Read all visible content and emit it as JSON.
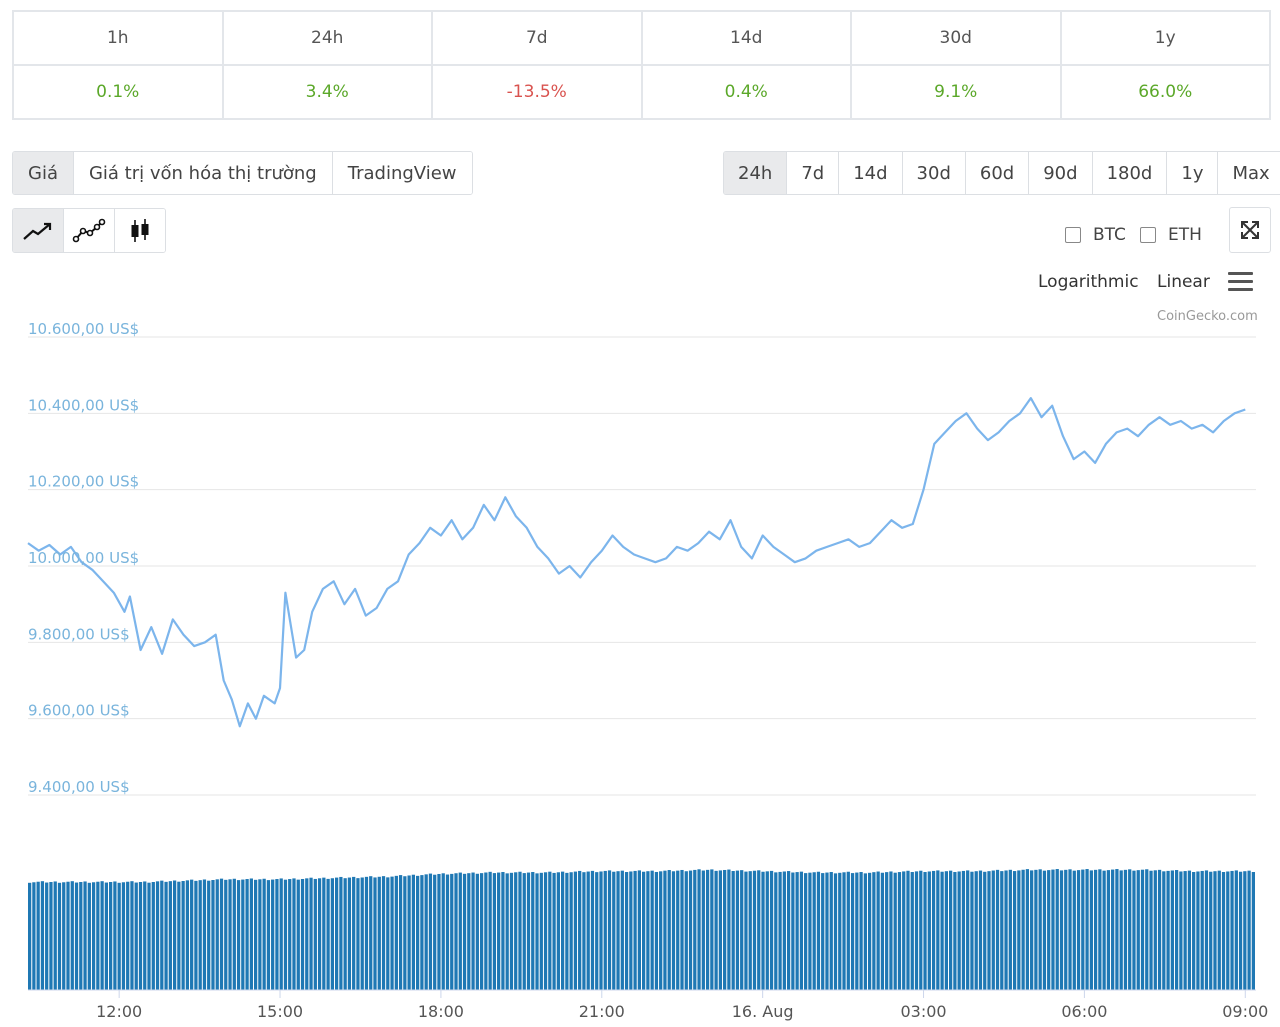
{
  "performance": {
    "periods": [
      "1h",
      "24h",
      "7d",
      "14d",
      "30d",
      "1y"
    ],
    "changes": [
      "0.1%",
      "3.4%",
      "-13.5%",
      "0.4%",
      "9.1%",
      "66.0%"
    ]
  },
  "tabs": [
    "Giá",
    "Giá trị vốn hóa thị trường",
    "TradingView"
  ],
  "ranges": [
    "24h",
    "7d",
    "14d",
    "30d",
    "60d",
    "90d",
    "180d",
    "1y",
    "Max"
  ],
  "chart_types": [
    "line-chart-icon",
    "line-markers-icon",
    "candlestick-icon"
  ],
  "compare": [
    "BTC",
    "ETH"
  ],
  "scale_options": [
    "Logarithmic",
    "Linear"
  ],
  "credit": "CoinGecko.com",
  "colors": {
    "line": "#7cb5ec",
    "volume": "#1f78b4",
    "positive": "#5ba829",
    "negative": "#d9534f"
  },
  "chart_data": {
    "type": "line",
    "title": "",
    "xlabel": "",
    "ylabel": "",
    "ylim": [
      9400,
      10600
    ],
    "y_ticks": [
      "10.600,00 US$",
      "10.400,00 US$",
      "10.200,00 US$",
      "10.000,00 US$",
      "9.800,00 US$",
      "9.600,00 US$",
      "9.400,00 US$"
    ],
    "x_ticks": [
      "12:00",
      "15:00",
      "18:00",
      "21:00",
      "16. Aug",
      "03:00",
      "06:00",
      "09:00"
    ],
    "x_range_hours": [
      10.3,
      33.2
    ],
    "series": [
      {
        "values": [
          [
            10.3,
            10060
          ],
          [
            10.5,
            10040
          ],
          [
            10.7,
            10055
          ],
          [
            10.9,
            10030
          ],
          [
            11.1,
            10050
          ],
          [
            11.3,
            10010
          ],
          [
            11.5,
            9990
          ],
          [
            11.7,
            9960
          ],
          [
            11.9,
            9930
          ],
          [
            12.1,
            9880
          ],
          [
            12.2,
            9920
          ],
          [
            12.4,
            9780
          ],
          [
            12.6,
            9840
          ],
          [
            12.8,
            9770
          ],
          [
            13.0,
            9860
          ],
          [
            13.2,
            9820
          ],
          [
            13.4,
            9790
          ],
          [
            13.6,
            9800
          ],
          [
            13.8,
            9820
          ],
          [
            13.95,
            9700
          ],
          [
            14.1,
            9650
          ],
          [
            14.25,
            9580
          ],
          [
            14.4,
            9640
          ],
          [
            14.55,
            9600
          ],
          [
            14.7,
            9660
          ],
          [
            14.9,
            9640
          ],
          [
            15.0,
            9680
          ],
          [
            15.1,
            9930
          ],
          [
            15.3,
            9760
          ],
          [
            15.45,
            9780
          ],
          [
            15.6,
            9880
          ],
          [
            15.8,
            9940
          ],
          [
            16.0,
            9960
          ],
          [
            16.2,
            9900
          ],
          [
            16.4,
            9940
          ],
          [
            16.6,
            9870
          ],
          [
            16.8,
            9890
          ],
          [
            17.0,
            9940
          ],
          [
            17.2,
            9960
          ],
          [
            17.4,
            10030
          ],
          [
            17.6,
            10060
          ],
          [
            17.8,
            10100
          ],
          [
            18.0,
            10080
          ],
          [
            18.2,
            10120
          ],
          [
            18.4,
            10070
          ],
          [
            18.6,
            10100
          ],
          [
            18.8,
            10160
          ],
          [
            19.0,
            10120
          ],
          [
            19.2,
            10180
          ],
          [
            19.4,
            10130
          ],
          [
            19.6,
            10100
          ],
          [
            19.8,
            10050
          ],
          [
            20.0,
            10020
          ],
          [
            20.2,
            9980
          ],
          [
            20.4,
            10000
          ],
          [
            20.6,
            9970
          ],
          [
            20.8,
            10010
          ],
          [
            21.0,
            10040
          ],
          [
            21.2,
            10080
          ],
          [
            21.4,
            10050
          ],
          [
            21.6,
            10030
          ],
          [
            21.8,
            10020
          ],
          [
            22.0,
            10010
          ],
          [
            22.2,
            10020
          ],
          [
            22.4,
            10050
          ],
          [
            22.6,
            10040
          ],
          [
            22.8,
            10060
          ],
          [
            23.0,
            10090
          ],
          [
            23.2,
            10070
          ],
          [
            23.4,
            10120
          ],
          [
            23.6,
            10050
          ],
          [
            23.8,
            10020
          ],
          [
            24.0,
            10080
          ],
          [
            24.2,
            10050
          ],
          [
            24.4,
            10030
          ],
          [
            24.6,
            10010
          ],
          [
            24.8,
            10020
          ],
          [
            25.0,
            10040
          ],
          [
            25.2,
            10050
          ],
          [
            25.4,
            10060
          ],
          [
            25.6,
            10070
          ],
          [
            25.8,
            10050
          ],
          [
            26.0,
            10060
          ],
          [
            26.2,
            10090
          ],
          [
            26.4,
            10120
          ],
          [
            26.6,
            10100
          ],
          [
            26.8,
            10110
          ],
          [
            27.0,
            10200
          ],
          [
            27.2,
            10320
          ],
          [
            27.4,
            10350
          ],
          [
            27.6,
            10380
          ],
          [
            27.8,
            10400
          ],
          [
            28.0,
            10360
          ],
          [
            28.2,
            10330
          ],
          [
            28.4,
            10350
          ],
          [
            28.6,
            10380
          ],
          [
            28.8,
            10400
          ],
          [
            29.0,
            10440
          ],
          [
            29.2,
            10390
          ],
          [
            29.4,
            10420
          ],
          [
            29.6,
            10340
          ],
          [
            29.8,
            10280
          ],
          [
            30.0,
            10300
          ],
          [
            30.2,
            10270
          ],
          [
            30.4,
            10320
          ],
          [
            30.6,
            10350
          ],
          [
            30.8,
            10360
          ],
          [
            31.0,
            10340
          ],
          [
            31.2,
            10370
          ],
          [
            31.4,
            10390
          ],
          [
            31.6,
            10370
          ],
          [
            31.8,
            10380
          ],
          [
            32.0,
            10360
          ],
          [
            32.2,
            10370
          ],
          [
            32.4,
            10350
          ],
          [
            32.6,
            10380
          ],
          [
            32.8,
            10400
          ],
          [
            33.0,
            10410
          ]
        ]
      }
    ],
    "volume_range": [
      0,
      1
    ],
    "volume_series": [
      [
        10.3,
        0.8
      ],
      [
        12.5,
        0.8
      ],
      [
        14.0,
        0.82
      ],
      [
        15.0,
        0.82
      ],
      [
        16.0,
        0.83
      ],
      [
        17.0,
        0.84
      ],
      [
        18.0,
        0.86
      ],
      [
        19.0,
        0.87
      ],
      [
        20.0,
        0.87
      ],
      [
        21.0,
        0.88
      ],
      [
        22.0,
        0.88
      ],
      [
        23.0,
        0.89
      ],
      [
        24.0,
        0.88
      ],
      [
        25.0,
        0.87
      ],
      [
        26.0,
        0.87
      ],
      [
        27.0,
        0.88
      ],
      [
        28.0,
        0.88
      ],
      [
        29.0,
        0.89
      ],
      [
        30.0,
        0.89
      ],
      [
        31.0,
        0.89
      ],
      [
        32.0,
        0.88
      ],
      [
        33.2,
        0.88
      ]
    ]
  }
}
